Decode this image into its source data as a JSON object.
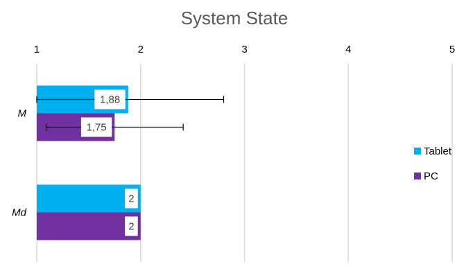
{
  "chart_data": {
    "type": "bar",
    "orientation": "horizontal",
    "title": "System State",
    "xlim": [
      1,
      5
    ],
    "xticks": [
      "1",
      "2",
      "3",
      "4",
      "5"
    ],
    "categories": [
      "M",
      "Md"
    ],
    "series": [
      {
        "name": "Tablet",
        "color": "#00B0F0",
        "values": [
          1.88,
          2
        ],
        "labels": [
          "1,88",
          "2"
        ],
        "error_high": [
          2.8,
          null
        ],
        "error_low": [
          1.0,
          null
        ]
      },
      {
        "name": "PC",
        "color": "#7030A0",
        "values": [
          1.75,
          2
        ],
        "labels": [
          "1,75",
          "2"
        ],
        "error_high": [
          2.41,
          null
        ],
        "error_low": [
          1.09,
          null
        ]
      }
    ],
    "grid": true,
    "legend_position": "right"
  }
}
